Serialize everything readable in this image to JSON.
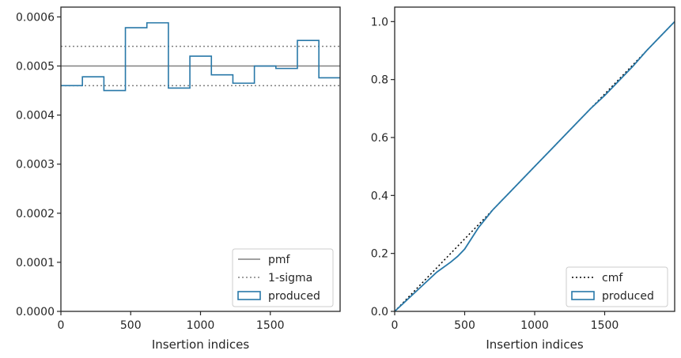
{
  "chart_data": [
    {
      "type": "step",
      "xlabel": "Insertion indices",
      "ylabel": "",
      "xlim": [
        0,
        2000
      ],
      "ylim": [
        0,
        0.00062
      ],
      "xticks": [
        0,
        500,
        1000,
        1500
      ],
      "xtick_labels": [
        "0",
        "500",
        "1000",
        "1500"
      ],
      "yticks": [
        0,
        0.0001,
        0.0002,
        0.0003,
        0.0004,
        0.0005,
        0.0006
      ],
      "ytick_labels": [
        "0.0000",
        "0.0001",
        "0.0002",
        "0.0003",
        "0.0004",
        "0.0005",
        "0.0006"
      ],
      "legend_position": "lower-right",
      "legend": [
        "pmf",
        "1-sigma",
        "produced"
      ],
      "reference_lines": [
        {
          "name": "pmf",
          "y": 0.0005,
          "color": "#808080",
          "style": "solid"
        },
        {
          "name": "1-sigma",
          "y": 0.00054,
          "color": "#808080",
          "style": "dotted"
        },
        {
          "name": "1-sigma",
          "y": 0.00046,
          "color": "#808080",
          "style": "dotted"
        }
      ],
      "series": [
        {
          "name": "produced",
          "color": "#2878a8",
          "bin_edges": [
            0,
            154,
            308,
            462,
            616,
            770,
            924,
            1078,
            1232,
            1386,
            1540,
            1694,
            1848,
            2000
          ],
          "values": [
            0.00046,
            0.000478,
            0.00045,
            0.000578,
            0.000588,
            0.000455,
            0.00052,
            0.000482,
            0.000465,
            0.0005,
            0.000495,
            0.000552,
            0.000476
          ]
        }
      ]
    },
    {
      "type": "line",
      "xlabel": "Insertion indices",
      "ylabel": "",
      "xlim": [
        0,
        2000
      ],
      "ylim": [
        0,
        1.05
      ],
      "xticks": [
        0,
        500,
        1000,
        1500
      ],
      "xtick_labels": [
        "0",
        "500",
        "1000",
        "1500"
      ],
      "yticks": [
        0,
        0.2,
        0.4,
        0.6,
        0.8,
        1.0
      ],
      "ytick_labels": [
        "0.0",
        "0.2",
        "0.4",
        "0.6",
        "0.8",
        "1.0"
      ],
      "legend_position": "lower-right",
      "legend": [
        "cmf",
        "produced"
      ],
      "series": [
        {
          "name": "cmf",
          "color": "#000000",
          "style": "dotted",
          "x": [
            0,
            2000
          ],
          "y": [
            0,
            1.0
          ]
        },
        {
          "name": "produced",
          "color": "#2878a8",
          "style": "solid",
          "x": [
            0,
            100,
            200,
            300,
            400,
            450,
            500,
            600,
            700,
            800,
            900,
            1000,
            1100,
            1200,
            1300,
            1400,
            1500,
            1600,
            1700,
            1800,
            1900,
            2000
          ],
          "y": [
            0,
            0.045,
            0.09,
            0.135,
            0.17,
            0.19,
            0.215,
            0.29,
            0.35,
            0.4,
            0.45,
            0.5,
            0.55,
            0.6,
            0.65,
            0.7,
            0.745,
            0.795,
            0.845,
            0.9,
            0.95,
            1.0
          ]
        }
      ]
    }
  ]
}
